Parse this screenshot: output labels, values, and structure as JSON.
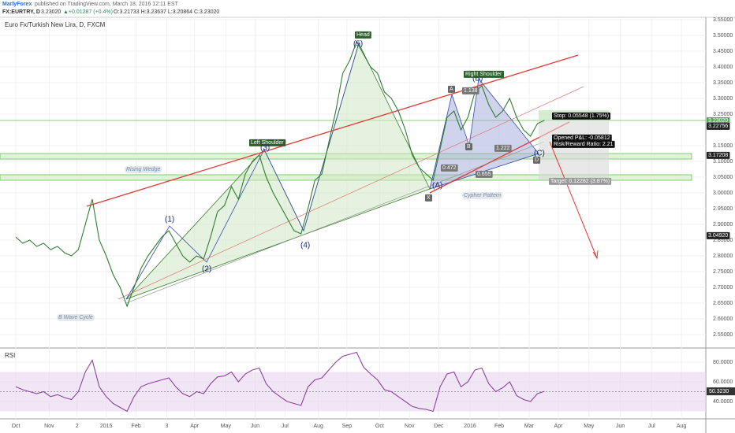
{
  "header": {
    "author": "MarlyForex",
    "published": "published on TradingView.com, March 18, 2016 12:11 EST",
    "symbol": "FX:EURTRY, D",
    "last": "3.23020",
    "change": "▲+0.01287 (+0.4%)",
    "ohlc": "O:3.21733 H:3.23637 L:3.20864 C:3.23020"
  },
  "chart_data": [
    {
      "type": "line",
      "title": "Euro Fx/Turkish New Lira, D, FXCM",
      "color": "#2e7d32",
      "x": [
        0,
        1,
        2,
        3,
        4,
        5,
        6,
        7,
        8,
        9,
        10,
        11,
        12,
        13,
        14,
        15,
        16,
        17,
        18,
        19,
        20,
        21,
        22,
        23,
        24,
        25,
        26,
        27,
        28,
        29,
        30,
        31,
        32,
        33,
        34,
        35,
        36,
        37,
        38,
        39,
        40,
        41,
        42,
        43,
        44,
        45,
        46,
        47,
        48,
        49,
        50,
        51,
        52,
        53,
        54,
        55,
        56,
        57,
        58,
        59,
        60,
        61,
        62,
        63,
        64,
        65,
        66,
        67,
        68,
        69,
        70,
        71,
        72,
        73,
        74,
        75,
        76
      ],
      "values": [
        2.86,
        2.84,
        2.85,
        2.83,
        2.84,
        2.82,
        2.83,
        2.81,
        2.8,
        2.82,
        2.9,
        2.98,
        2.85,
        2.8,
        2.74,
        2.7,
        2.64,
        2.7,
        2.76,
        2.8,
        2.83,
        2.86,
        2.88,
        2.84,
        2.8,
        2.78,
        2.8,
        2.79,
        2.86,
        2.94,
        2.96,
        3.02,
        2.98,
        3.06,
        3.1,
        3.12,
        3.05,
        3.0,
        2.96,
        2.92,
        2.88,
        2.87,
        2.95,
        3.04,
        3.06,
        3.16,
        3.26,
        3.38,
        3.42,
        3.48,
        3.44,
        3.4,
        3.38,
        3.32,
        3.3,
        3.26,
        3.2,
        3.12,
        3.08,
        3.06,
        3.04,
        3.14,
        3.24,
        3.26,
        3.2,
        3.24,
        3.32,
        3.34,
        3.28,
        3.24,
        3.26,
        3.3,
        3.24,
        3.2,
        3.18,
        3.22,
        3.2302
      ],
      "xlim": [
        -2.27,
        99.2
      ],
      "xticks": [
        {
          "value": 0,
          "label": "Oct"
        },
        {
          "value": 4.8,
          "label": "Nov"
        },
        {
          "value": 8.8,
          "label": "2"
        },
        {
          "value": 13,
          "label": "2015"
        },
        {
          "value": 17.3,
          "label": "Feb"
        },
        {
          "value": 21.7,
          "label": "3"
        },
        {
          "value": 25.7,
          "label": "Apr"
        },
        {
          "value": 30.2,
          "label": "May"
        },
        {
          "value": 34.4,
          "label": "Jun"
        },
        {
          "value": 38.7,
          "label": "Jul"
        },
        {
          "value": 43.5,
          "label": "Aug"
        },
        {
          "value": 47.6,
          "label": "Sep"
        },
        {
          "value": 52.3,
          "label": "Oct"
        },
        {
          "value": 56.6,
          "label": "Nov"
        },
        {
          "value": 60.8,
          "label": "Dec"
        },
        {
          "value": 65.3,
          "label": "2016"
        },
        {
          "value": 69.5,
          "label": "Feb"
        },
        {
          "value": 73.8,
          "label": "Mar"
        },
        {
          "value": 78,
          "label": "Apr"
        },
        {
          "value": 82.4,
          "label": "May"
        },
        {
          "value": 86.9,
          "label": "Jun"
        },
        {
          "value": 91.4,
          "label": "Jul"
        },
        {
          "value": 95.7,
          "label": "Aug"
        }
      ],
      "ylim": [
        2.5125,
        3.5575
      ],
      "yticks": [
        {
          "value": 2.55,
          "label": "2.55000"
        },
        {
          "value": 2.6,
          "label": "2.60000"
        },
        {
          "value": 2.65,
          "label": "2.65000"
        },
        {
          "value": 2.7,
          "label": "2.70000"
        },
        {
          "value": 2.75,
          "label": "2.75000"
        },
        {
          "value": 2.8,
          "label": "2.80000"
        },
        {
          "value": 2.85,
          "label": "2.85000"
        },
        {
          "value": 2.9,
          "label": "2.90000"
        },
        {
          "value": 2.95,
          "label": "2.95000"
        },
        {
          "value": 3.0,
          "label": "3.00000"
        },
        {
          "value": 3.05,
          "label": "3.05000"
        },
        {
          "value": 3.1,
          "label": "3.10000"
        },
        {
          "value": 3.15,
          "label": "3.15000"
        },
        {
          "value": 3.25,
          "label": "3.25000"
        },
        {
          "value": 3.3,
          "label": "3.30000"
        },
        {
          "value": 3.35,
          "label": "3.35000"
        },
        {
          "value": 3.4,
          "label": "3.40000"
        },
        {
          "value": 3.45,
          "label": "3.45000"
        },
        {
          "value": 3.5,
          "label": "3.50000"
        },
        {
          "value": 3.55,
          "label": "3.55000"
        }
      ],
      "grid": true,
      "annotations": [
        "Head",
        "(5)",
        "Left Shoulder",
        "(3)",
        "Rising Wedge",
        "(1)",
        "(2)",
        "(4)",
        "B Wave Cycle",
        "(A)",
        "X",
        "A",
        "(B)",
        "Right Shoulder",
        "1.138",
        "B",
        "0.472",
        "1.222",
        "(C)",
        "D",
        "0.655",
        "Cypher Pattern",
        "Stop: 0.05548 (1.75%)",
        "Opened P&L: -0.05812",
        "Risk/Reward Ratio: 2.21",
        "Target: 0.12282 (3.87%)",
        "3.23020",
        "3.22756",
        "3.17208",
        "3.04920"
      ]
    },
    {
      "type": "line",
      "title": "RSI",
      "color": "#8e3fa0",
      "values": [
        55,
        52,
        50,
        48,
        50,
        45,
        47,
        44,
        42,
        50,
        70,
        82,
        55,
        45,
        38,
        34,
        30,
        45,
        55,
        58,
        60,
        62,
        64,
        55,
        48,
        45,
        50,
        48,
        58,
        65,
        66,
        70,
        60,
        68,
        72,
        74,
        58,
        50,
        45,
        40,
        38,
        36,
        55,
        62,
        64,
        72,
        80,
        86,
        88,
        90,
        75,
        68,
        62,
        52,
        50,
        45,
        40,
        35,
        33,
        32,
        30,
        55,
        68,
        70,
        55,
        60,
        72,
        74,
        58,
        50,
        54,
        60,
        46,
        42,
        40,
        48,
        50.323
      ],
      "last_label": "50.3230",
      "band": [
        30,
        70
      ],
      "midline": 50,
      "ylim": [
        24,
        92
      ],
      "yticks": [
        {
          "value": 40,
          "label": "40.0000"
        },
        {
          "value": 60,
          "label": "60.0000"
        },
        {
          "value": 80,
          "label": "80.0000"
        }
      ],
      "grid": true
    }
  ]
}
